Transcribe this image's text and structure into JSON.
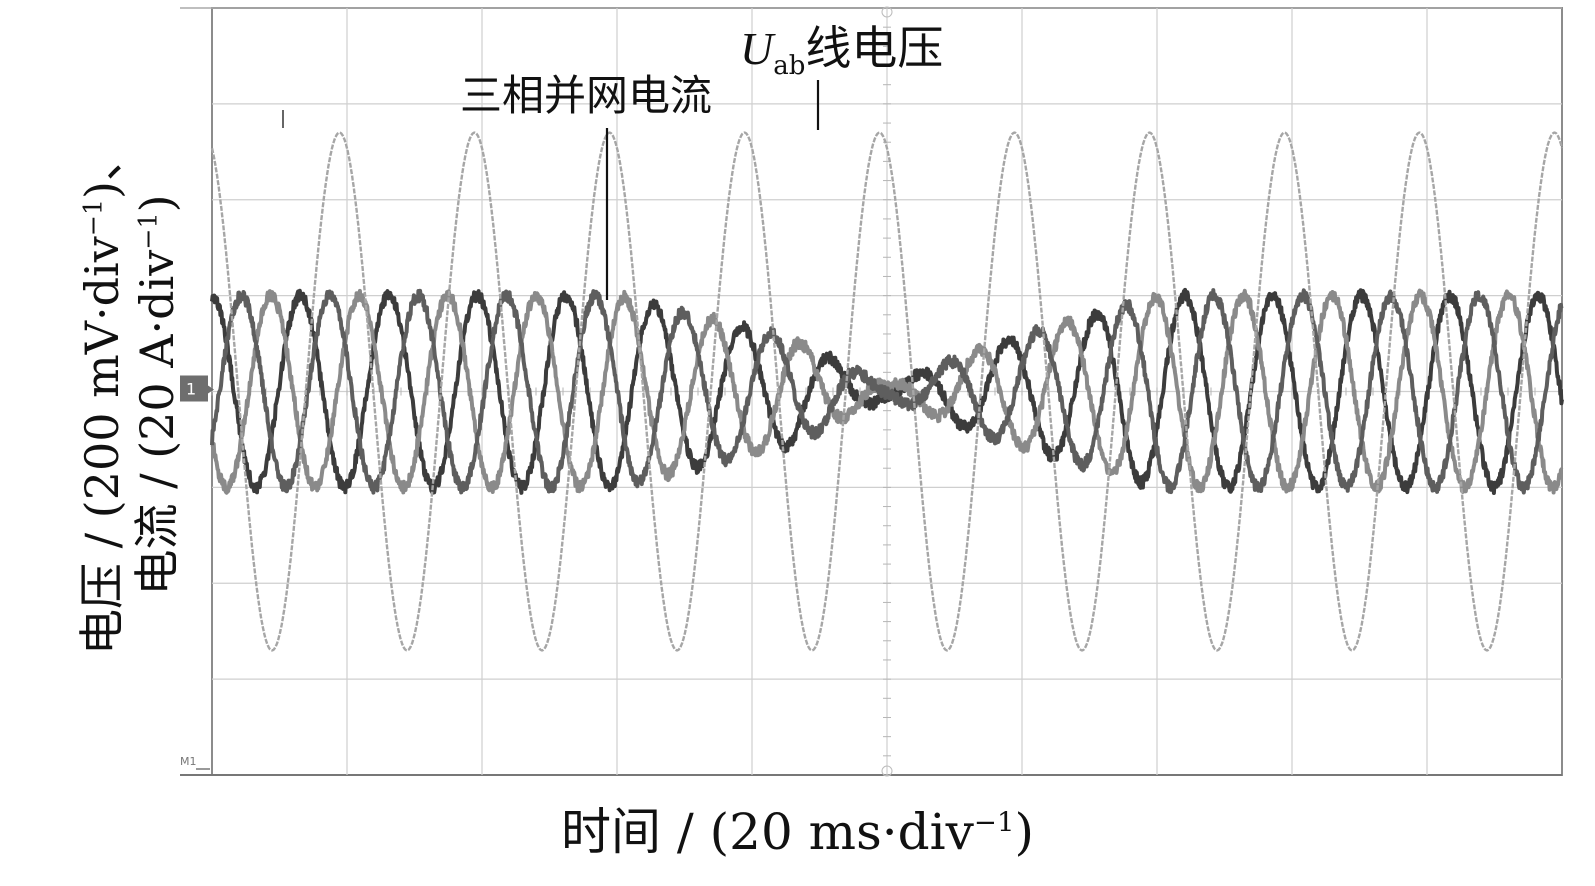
{
  "chart_data": {
    "type": "line",
    "xlabel_prefix": "时间 / (20 ms·div",
    "xlabel_sup": "−1",
    "xlabel_suffix": ")",
    "ylabel_line1_prefix": "电压 / (200 mV·div",
    "ylabel_line1_sup": "−1",
    "ylabel_line1_suffix": ")、",
    "ylabel_line2_prefix": "电流 / (20 A·div",
    "ylabel_line2_sup": "−1",
    "ylabel_line2_suffix": ")",
    "annotations": {
      "uab_italic": "U",
      "uab_sub": "ab",
      "uab_text": "线电压",
      "current_text": "三相并网电流"
    },
    "marker_ch1": "1",
    "marker_m1": "M1",
    "grid": true,
    "x_divisions": 10,
    "y_divisions": 8,
    "xlim_div": [
      0,
      10
    ],
    "ylim_div": [
      -4,
      4
    ],
    "series": [
      {
        "kind": "voltage",
        "color": "#a6a6a6",
        "amplitude_div": 2.7,
        "period_div": 1.0,
        "phase_deg": 110
      },
      {
        "kind": "current",
        "color": "#3c3c3c",
        "phase_deg": 90
      },
      {
        "kind": "current",
        "color": "#8a8a8a",
        "phase_deg": 210
      },
      {
        "kind": "current",
        "color": "#5e5e5e",
        "phase_deg": 330
      }
    ],
    "current_envelope_div": {
      "t": [
        0,
        3.0,
        4.3,
        5.0,
        5.8,
        7.0,
        10.0
      ],
      "amp": [
        1.0,
        1.0,
        0.55,
        0.05,
        0.5,
        1.0,
        1.0
      ]
    },
    "current_period_div": 0.655
  }
}
